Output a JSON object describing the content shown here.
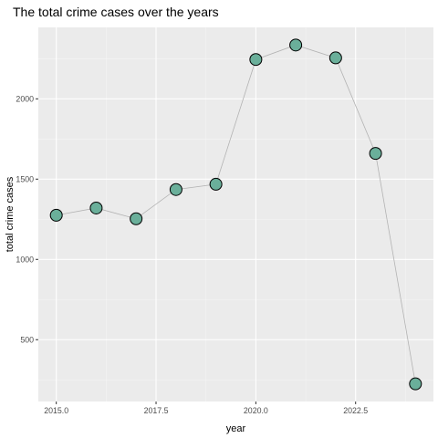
{
  "chart_data": {
    "type": "line",
    "title": "The total crime cases over the years",
    "xlabel": "year",
    "ylabel": "total crime cases",
    "x": [
      2015,
      2016,
      2017,
      2018,
      2019,
      2020,
      2021,
      2022,
      2023,
      2024
    ],
    "series": [
      {
        "values": [
          1275,
          1320,
          1253,
          1435,
          1468,
          2245,
          2335,
          2255,
          1660,
          225
        ]
      }
    ],
    "xlim": [
      2014.55,
      2024.45
    ],
    "ylim": [
      115,
      2445
    ],
    "x_ticks": [
      2015.0,
      2017.5,
      2020.0,
      2022.5
    ],
    "x_tick_labels": [
      "2015.0",
      "2017.5",
      "2020.0",
      "2022.5"
    ],
    "y_ticks": [
      500,
      1000,
      1500,
      2000
    ],
    "y_tick_labels": [
      "500",
      "1000",
      "1500",
      "2000"
    ],
    "grid": true,
    "legend": "none",
    "colors": {
      "panel": "#ebebeb",
      "grid_major": "#ffffff",
      "grid_minor": "#f5f5f5",
      "line": "#b3b3b3",
      "point_fill": "#6aaf9a",
      "point_stroke": "#000000"
    }
  }
}
